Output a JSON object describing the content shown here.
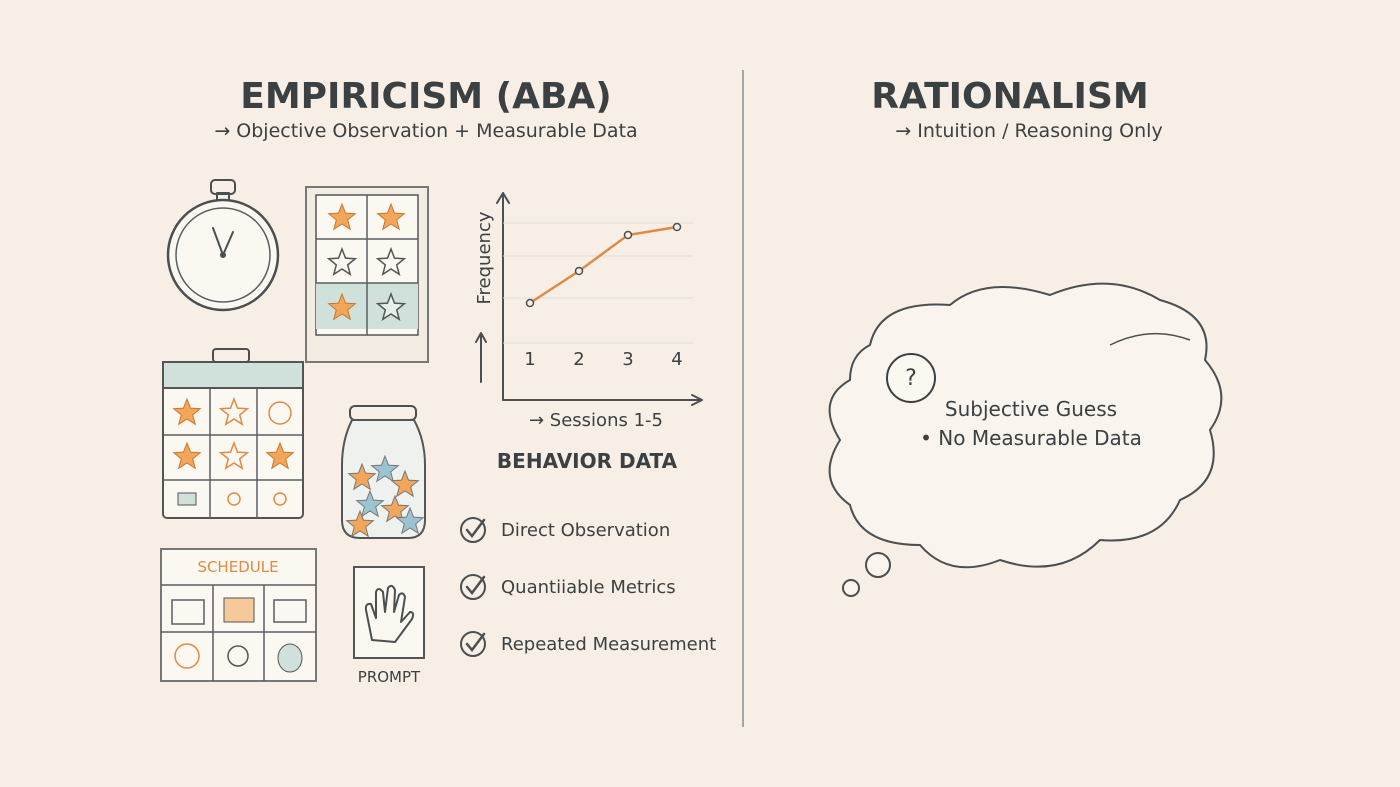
{
  "left": {
    "title": "EMPIRICISM (ABA)",
    "subtitle": "→ Objective Observation + Measurable Data",
    "chart": {
      "y_label": "Frequency",
      "categories": [
        "1",
        "2",
        "3",
        "4"
      ],
      "values": [
        1,
        1.8,
        2.7,
        2.9
      ],
      "ylim": [
        0,
        4
      ],
      "x_label": "→ Sessions 1-5",
      "caption": "BEHAVIOR DATA",
      "color": "#e08a45"
    },
    "checklist": [
      "Direct Observation",
      "Quantiiable Metrics",
      "Repeated Measurement"
    ],
    "schedule_label": "SCHEDULE",
    "prompt_label": "PROMPT"
  },
  "right": {
    "title": "RATIONALISM",
    "subtitle": "→ Intuition / Reasoning Only",
    "cloud_icon": "?",
    "cloud_lines": [
      "Subjective Guess",
      "• No Measurable Data"
    ]
  }
}
